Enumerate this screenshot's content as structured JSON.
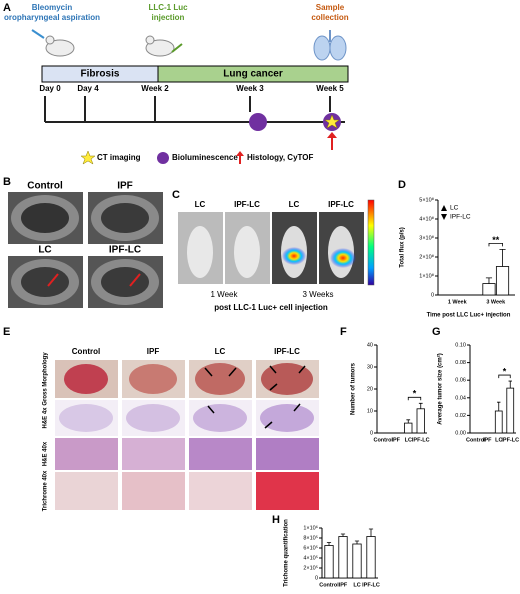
{
  "panel_labels": [
    "A",
    "B",
    "C",
    "D",
    "E",
    "F",
    "G",
    "H"
  ],
  "timeline": {
    "top_labels": [
      [
        "Bleomycin",
        "oropharyngeal aspiration"
      ],
      [
        "LLC-1 Luc",
        "injection"
      ],
      [
        "Sample",
        "collection"
      ]
    ],
    "phases": [
      "Fibrosis",
      "Lung cancer"
    ],
    "timepoints": [
      "Day 0",
      "Day 4",
      "Week 2",
      "Week 3",
      "Week 5"
    ],
    "legend": [
      "CT imaging",
      "Bioluminescence",
      "Histology, CyTOF"
    ]
  },
  "ct_images": {
    "labels": [
      "Control",
      "IPF",
      "LC",
      "IPF-LC"
    ]
  },
  "bli_images": {
    "labels": [
      "LC",
      "IPF-LC",
      "LC",
      "IPF-LC"
    ],
    "times": [
      "1 Week",
      "3 Weeks"
    ],
    "caption": "post LLC-1 Luc+ cell injection"
  },
  "histology": {
    "columns": [
      "Control",
      "IPF",
      "LC",
      "IPF-LC"
    ],
    "rows": [
      "Gross Morphology",
      "H&E 4x",
      "H&E 40x",
      "Trichrome 40x"
    ]
  },
  "chart_data": [
    {
      "type": "bar",
      "y_label": "Total flux (p/s)",
      "x_label": "Time post LLC Luc+ injection",
      "categories": [
        "1 Week",
        "3 Week"
      ],
      "series": [
        {
          "name": "LC",
          "color": "#ffffff",
          "values": [
            0,
            60000000
          ],
          "errors": [
            0,
            30000000
          ]
        },
        {
          "name": "IPF-LC",
          "color": "#ffffff",
          "values": [
            0,
            150000000
          ],
          "errors": [
            0,
            90000000
          ]
        }
      ],
      "ylim": [
        0,
        500000000
      ],
      "yticks": [
        0,
        {
          "value": 100000000,
          "label": "1×10⁸"
        },
        {
          "value": 200000000,
          "label": "2×10⁸"
        },
        {
          "value": 300000000,
          "label": "3×10⁸"
        },
        {
          "value": 400000000,
          "label": "4×10⁸"
        },
        {
          "value": 500000000,
          "label": "5×10⁸"
        }
      ],
      "significance": "**"
    },
    {
      "type": "bar",
      "y_label": "Number of tumors",
      "categories": [
        "Control",
        "IPF",
        "LC",
        "IPF-LC"
      ],
      "color": "#ffffff",
      "values": [
        0,
        0,
        4.5,
        11
      ],
      "errors": [
        0,
        0,
        1.5,
        2.5
      ],
      "ylim": [
        0,
        40
      ],
      "yticks": [
        0,
        10,
        20,
        30,
        40
      ],
      "significance": "*"
    },
    {
      "type": "bar",
      "y_label": "Average tumor size (cm²)",
      "categories": [
        "Control",
        "IPF",
        "LC",
        "IPF-LC"
      ],
      "color": "#ffffff",
      "values": [
        0,
        0,
        0.025,
        0.051
      ],
      "errors": [
        0,
        0,
        0.01,
        0.008
      ],
      "ylim": [
        0,
        0.1
      ],
      "yticks": [
        {
          "value": 0,
          "label": "0.00"
        },
        {
          "value": 0.02,
          "label": "0.02"
        },
        {
          "value": 0.04,
          "label": "0.04"
        },
        {
          "value": 0.06,
          "label": "0.06"
        },
        {
          "value": 0.08,
          "label": "0.08"
        },
        {
          "value": 0.1,
          "label": "0.10"
        }
      ],
      "significance": "*"
    },
    {
      "type": "bar",
      "y_label": "Trichome quantification",
      "categories": [
        "Control",
        "IPF",
        "LC",
        "IPF-LC"
      ],
      "color": "#ffffff",
      "values": [
        650000,
        830000,
        680000,
        830000
      ],
      "errors": [
        60000,
        50000,
        60000,
        150000
      ],
      "ylim": [
        0,
        1000000
      ],
      "yticks": [
        0,
        {
          "value": 200000,
          "label": "2×10⁵"
        },
        {
          "value": 400000,
          "label": "4×10⁵"
        },
        {
          "value": 600000,
          "label": "6×10⁵"
        },
        {
          "value": 800000,
          "label": "8×10⁵"
        },
        {
          "value": 1000000,
          "label": "1×10⁶"
        }
      ]
    }
  ]
}
